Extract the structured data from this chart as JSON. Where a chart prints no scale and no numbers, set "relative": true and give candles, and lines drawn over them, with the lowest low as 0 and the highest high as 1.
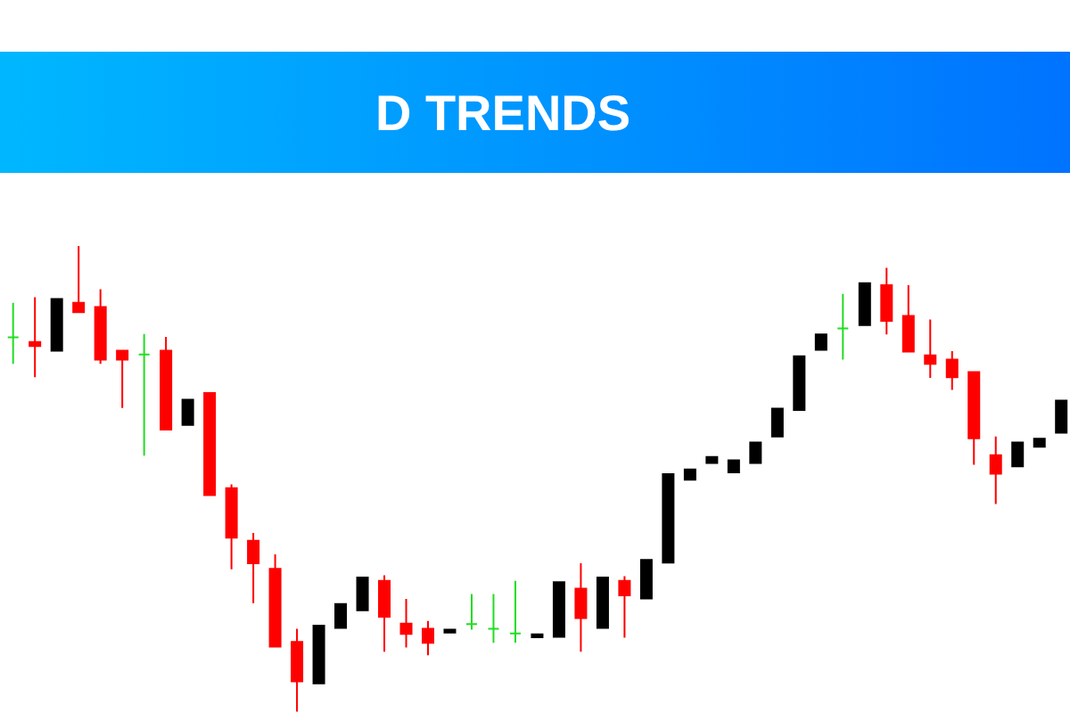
{
  "chart_data": {
    "type": "candlestick",
    "title": "D TRENDS",
    "relative": true,
    "categories": [
      null,
      null,
      null,
      null,
      null,
      null,
      null,
      null,
      null,
      null,
      null,
      null,
      null,
      null,
      null,
      null,
      null,
      null,
      null,
      null,
      null,
      null,
      null,
      null,
      null,
      null,
      null,
      null,
      null,
      null,
      null,
      null,
      null,
      null,
      null,
      null,
      null,
      null,
      null,
      null,
      null,
      null,
      null,
      null,
      null,
      null,
      null,
      null,
      null
    ],
    "ohlc": [
      [
        0.804,
        0.878,
        0.747,
        0.804
      ],
      [
        0.794,
        0.89,
        0.718,
        0.785
      ],
      [
        0.775,
        0.886,
        0.775,
        0.886
      ],
      [
        0.878,
        1.0,
        0.858,
        0.858
      ],
      [
        0.869,
        0.907,
        0.747,
        0.756
      ],
      [
        0.775,
        0.775,
        0.652,
        0.756
      ],
      [
        0.767,
        0.811,
        0.55,
        0.767
      ],
      [
        0.775,
        0.805,
        0.606,
        0.606
      ],
      [
        0.616,
        0.67,
        0.616,
        0.67
      ],
      [
        0.684,
        0.684,
        0.465,
        0.465
      ],
      [
        0.48,
        0.488,
        0.306,
        0.374
      ],
      [
        0.367,
        0.384,
        0.233,
        0.319
      ],
      [
        0.307,
        0.338,
        0.14,
        0.14
      ],
      [
        0.15,
        0.178,
        0.0,
        0.065
      ],
      [
        0.061,
        0.185,
        0.061,
        0.185
      ],
      [
        0.18,
        0.231,
        0.18,
        0.231
      ],
      [
        0.218,
        0.288,
        0.218,
        0.288
      ],
      [
        0.281,
        0.293,
        0.129,
        0.204
      ],
      [
        0.189,
        0.242,
        0.138,
        0.167
      ],
      [
        0.178,
        0.195,
        0.121,
        0.148
      ],
      [
        0.17,
        0.176,
        0.17,
        0.176
      ],
      [
        0.188,
        0.253,
        0.176,
        0.188
      ],
      [
        0.178,
        0.253,
        0.148,
        0.178
      ],
      [
        0.168,
        0.281,
        0.148,
        0.168
      ],
      [
        0.16,
        0.166,
        0.16,
        0.166
      ],
      [
        0.161,
        0.278,
        0.161,
        0.278
      ],
      [
        0.264,
        0.319,
        0.129,
        0.201
      ],
      [
        0.18,
        0.288,
        0.18,
        0.288
      ],
      [
        0.281,
        0.291,
        0.159,
        0.25
      ],
      [
        0.243,
        0.326,
        0.243,
        0.326
      ],
      [
        0.32,
        0.51,
        0.32,
        0.51
      ],
      [
        0.498,
        0.52,
        0.498,
        0.52
      ],
      [
        0.534,
        0.547,
        0.534,
        0.547
      ],
      [
        0.514,
        0.54,
        0.514,
        0.54
      ],
      [
        0.534,
        0.578,
        0.534,
        0.578
      ],
      [
        0.591,
        0.651,
        0.591,
        0.651
      ],
      [
        0.648,
        0.763,
        0.648,
        0.763
      ],
      [
        0.777,
        0.81,
        0.777,
        0.81
      ],
      [
        0.823,
        0.897,
        0.756,
        0.823
      ],
      [
        0.83,
        0.92,
        0.83,
        0.92
      ],
      [
        0.916,
        0.953,
        0.81,
        0.839
      ],
      [
        0.85,
        0.916,
        0.773,
        0.773
      ],
      [
        0.765,
        0.842,
        0.717,
        0.747
      ],
      [
        0.756,
        0.774,
        0.691,
        0.718
      ],
      [
        0.729,
        0.729,
        0.53,
        0.587
      ],
      [
        0.551,
        0.591,
        0.446,
        0.511
      ],
      [
        0.527,
        0.578,
        0.527,
        0.578
      ],
      [
        0.569,
        0.586,
        0.569,
        0.586
      ],
      [
        0.599,
        0.668,
        0.599,
        0.668
      ]
    ],
    "colors": [
      "#22dd22",
      "#ff0000",
      "#000000",
      "#ff0000",
      "#ff0000",
      "#ff0000",
      "#22dd22",
      "#ff0000",
      "#000000",
      "#ff0000",
      "#ff0000",
      "#ff0000",
      "#ff0000",
      "#ff0000",
      "#000000",
      "#000000",
      "#000000",
      "#ff0000",
      "#ff0000",
      "#ff0000",
      "#000000",
      "#22dd22",
      "#22dd22",
      "#22dd22",
      "#000000",
      "#000000",
      "#ff0000",
      "#000000",
      "#ff0000",
      "#000000",
      "#000000",
      "#000000",
      "#000000",
      "#000000",
      "#000000",
      "#000000",
      "#000000",
      "#000000",
      "#22dd22",
      "#000000",
      "#ff0000",
      "#ff0000",
      "#ff0000",
      "#ff0000",
      "#ff0000",
      "#ff0000",
      "#000000",
      "#000000",
      "#000000"
    ]
  }
}
